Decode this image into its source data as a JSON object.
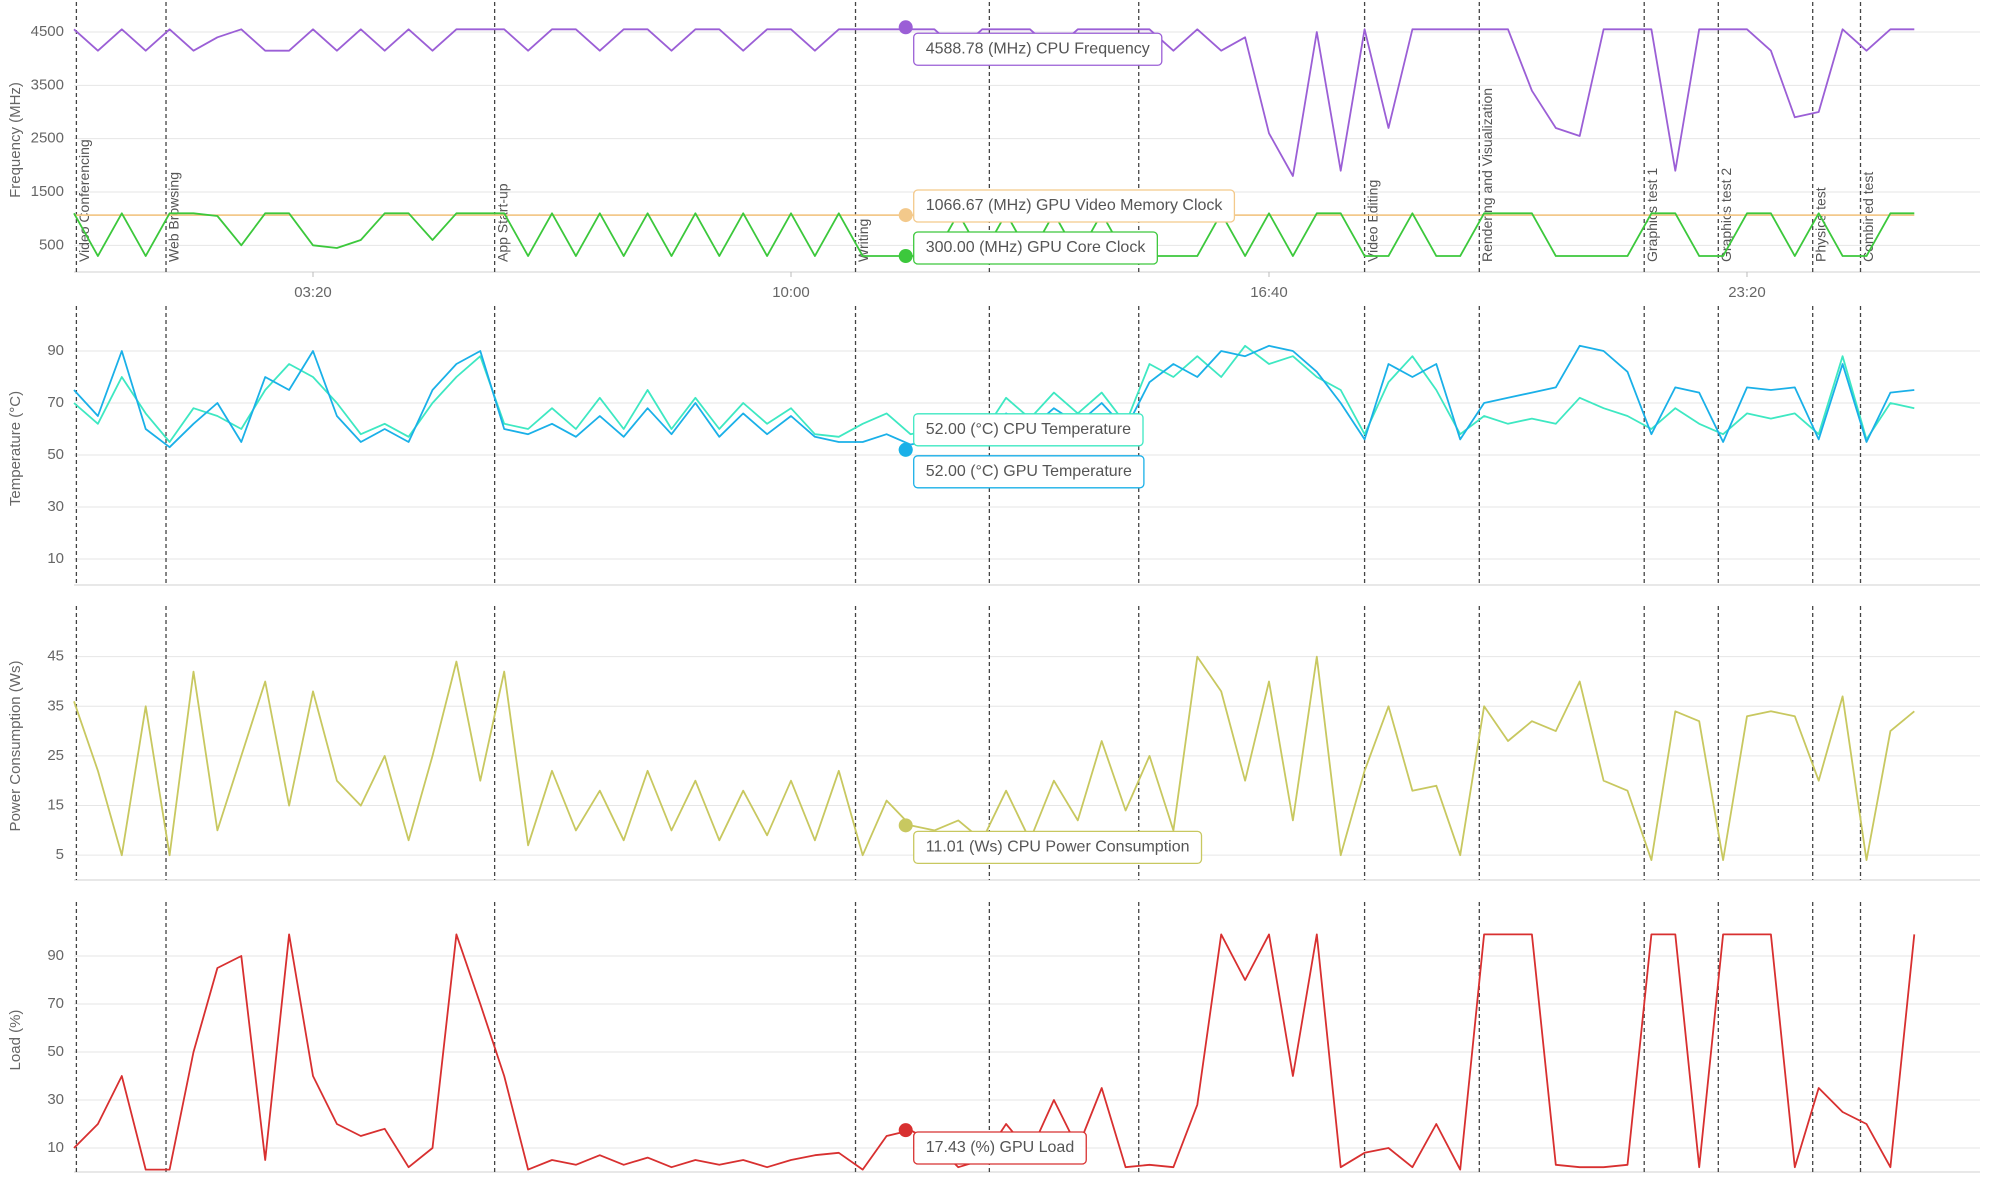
{
  "chart_data": [
    {
      "type": "line",
      "ylabel": "Frequency (MHz)",
      "ylim": [
        0,
        4950
      ],
      "yticks": [
        500,
        1500,
        2500,
        3500,
        4500
      ],
      "xlim": [
        0,
        1595
      ],
      "xticks": [
        {
          "value": 200,
          "label": "03:20"
        },
        {
          "value": 600,
          "label": "10:00"
        },
        {
          "value": 1000,
          "label": "16:40"
        },
        {
          "value": 1400,
          "label": "23:20"
        }
      ],
      "grid": true,
      "events": {
        "x": [
          2,
          77,
          352,
          654,
          766,
          891,
          1080,
          1176,
          1314,
          1376,
          1455,
          1495
        ],
        "labels": [
          "Video Conferencing",
          "Web Browsing",
          "App Start-up",
          "Writing",
          null,
          null,
          "Video Editing",
          "Rendering and Visualization",
          "Graphics test 1",
          "Graphics test 2",
          "Physics test",
          "Combined test"
        ]
      },
      "hover_x": 696,
      "x": [
        0,
        20,
        40,
        60,
        80,
        100,
        120,
        140,
        160,
        180,
        200,
        220,
        240,
        260,
        280,
        300,
        320,
        340,
        360,
        380,
        400,
        420,
        440,
        460,
        480,
        500,
        520,
        540,
        560,
        580,
        600,
        620,
        640,
        660,
        680,
        700,
        720,
        740,
        760,
        780,
        800,
        820,
        840,
        860,
        880,
        900,
        920,
        940,
        960,
        980,
        1000,
        1020,
        1040,
        1060,
        1080,
        1100,
        1120,
        1140,
        1160,
        1180,
        1200,
        1220,
        1240,
        1260,
        1280,
        1300,
        1320,
        1340,
        1360,
        1380,
        1400,
        1420,
        1440,
        1460,
        1480,
        1500,
        1520,
        1540
      ],
      "series": [
        {
          "name": "CPU Frequency",
          "color": "#9b5fd6",
          "tooltip": {
            "value": 4588.78,
            "text": "4588.78 (MHz) CPU Frequency"
          },
          "values": [
            4550,
            4150,
            4550,
            4150,
            4550,
            4150,
            4400,
            4550,
            4150,
            4150,
            4550,
            4150,
            4550,
            4150,
            4550,
            4150,
            4550,
            4550,
            4550,
            4150,
            4550,
            4550,
            4150,
            4550,
            4550,
            4150,
            4550,
            4550,
            4150,
            4550,
            4550,
            4150,
            4550,
            4550,
            4550,
            4550,
            4550,
            4150,
            4550,
            4550,
            4550,
            4150,
            4550,
            4550,
            4550,
            4550,
            4150,
            4550,
            4150,
            4400,
            2600,
            1800,
            4500,
            1900,
            4550,
            2700,
            4550,
            4550,
            4550,
            4550,
            4550,
            3400,
            2700,
            2550,
            4550,
            4550,
            4550,
            1900,
            4550,
            4550,
            4550,
            4150,
            2900,
            3000,
            4550,
            4150,
            4550,
            4550
          ]
        },
        {
          "name": "GPU Video Memory Clock",
          "color": "#f3c98b",
          "tooltip": {
            "value": 1066.67,
            "text": "1066.67 (MHz) GPU Video Memory Clock"
          },
          "x": [
            0,
            1540
          ],
          "values": [
            1066.67,
            1066.67
          ]
        },
        {
          "name": "GPU Core Clock",
          "color": "#3cc83c",
          "tooltip": {
            "value": 300,
            "text": "300.00 (MHz) GPU Core Clock"
          },
          "values": [
            1100,
            300,
            1100,
            300,
            1100,
            1100,
            1050,
            500,
            1100,
            1100,
            500,
            450,
            600,
            1100,
            1100,
            600,
            1100,
            1100,
            1100,
            300,
            1100,
            300,
            1100,
            300,
            1100,
            300,
            1100,
            300,
            1100,
            300,
            1100,
            300,
            1100,
            300,
            300,
            300,
            300,
            1100,
            300,
            1100,
            300,
            1100,
            300,
            1100,
            300,
            300,
            300,
            300,
            1100,
            300,
            1100,
            300,
            1100,
            1100,
            300,
            300,
            1100,
            300,
            300,
            1100,
            1100,
            1100,
            300,
            300,
            300,
            300,
            1100,
            1100,
            300,
            300,
            1100,
            1100,
            300,
            1100,
            300,
            300,
            1100,
            1100
          ]
        }
      ]
    },
    {
      "type": "line",
      "ylabel": "Temperature (°C)",
      "ylim": [
        0,
        105
      ],
      "yticks": [
        10,
        30,
        50,
        70,
        90
      ],
      "xlim": [
        0,
        1595
      ],
      "grid": true,
      "hover_x": 696,
      "x": [
        0,
        20,
        40,
        60,
        80,
        100,
        120,
        140,
        160,
        180,
        200,
        220,
        240,
        260,
        280,
        300,
        320,
        340,
        360,
        380,
        400,
        420,
        440,
        460,
        480,
        500,
        520,
        540,
        560,
        580,
        600,
        620,
        640,
        660,
        680,
        700,
        720,
        740,
        760,
        780,
        800,
        820,
        840,
        860,
        880,
        900,
        920,
        940,
        960,
        980,
        1000,
        1020,
        1040,
        1060,
        1080,
        1100,
        1120,
        1140,
        1160,
        1180,
        1200,
        1220,
        1240,
        1260,
        1280,
        1300,
        1320,
        1340,
        1360,
        1380,
        1400,
        1420,
        1440,
        1460,
        1480,
        1500,
        1520,
        1540
      ],
      "series": [
        {
          "name": "CPU Temperature",
          "color": "#3ee8c2",
          "tooltip": {
            "value": 52,
            "text": "52.00 (°C) CPU Temperature"
          },
          "values": [
            70,
            62,
            80,
            66,
            55,
            68,
            65,
            60,
            75,
            85,
            80,
            70,
            58,
            62,
            57,
            70,
            80,
            88,
            62,
            60,
            68,
            60,
            72,
            60,
            75,
            60,
            72,
            60,
            70,
            62,
            68,
            58,
            57,
            62,
            66,
            58,
            60,
            62,
            58,
            72,
            64,
            74,
            66,
            74,
            62,
            85,
            80,
            88,
            80,
            92,
            85,
            88,
            80,
            75,
            58,
            78,
            88,
            75,
            58,
            65,
            62,
            64,
            62,
            72,
            68,
            65,
            60,
            68,
            62,
            58,
            66,
            64,
            66,
            58,
            88,
            56,
            70,
            68
          ]
        },
        {
          "name": "GPU Temperature",
          "color": "#1ab0e8",
          "tooltip": {
            "value": 52,
            "text": "52.00 (°C) GPU Temperature"
          },
          "values": [
            75,
            65,
            90,
            60,
            53,
            62,
            70,
            55,
            80,
            75,
            90,
            65,
            55,
            60,
            55,
            75,
            85,
            90,
            60,
            58,
            62,
            57,
            65,
            57,
            68,
            58,
            70,
            57,
            66,
            58,
            65,
            57,
            55,
            55,
            58,
            54,
            56,
            60,
            56,
            66,
            60,
            68,
            62,
            70,
            60,
            78,
            85,
            80,
            90,
            88,
            92,
            90,
            82,
            70,
            56,
            85,
            80,
            85,
            56,
            70,
            72,
            74,
            76,
            92,
            90,
            82,
            58,
            76,
            74,
            55,
            76,
            75,
            76,
            56,
            85,
            55,
            74,
            75
          ]
        }
      ]
    },
    {
      "type": "line",
      "ylabel": "Power Consumption (Ws)",
      "ylim": [
        0,
        54
      ],
      "yticks": [
        5,
        15,
        25,
        35,
        45
      ],
      "xlim": [
        0,
        1595
      ],
      "grid": true,
      "hover_x": 696,
      "x": [
        0,
        20,
        40,
        60,
        80,
        100,
        120,
        140,
        160,
        180,
        200,
        220,
        240,
        260,
        280,
        300,
        320,
        340,
        360,
        380,
        400,
        420,
        440,
        460,
        480,
        500,
        520,
        540,
        560,
        580,
        600,
        620,
        640,
        660,
        680,
        700,
        720,
        740,
        760,
        780,
        800,
        820,
        840,
        860,
        880,
        900,
        920,
        940,
        960,
        980,
        1000,
        1020,
        1040,
        1060,
        1080,
        1100,
        1120,
        1140,
        1160,
        1180,
        1200,
        1220,
        1240,
        1260,
        1280,
        1300,
        1320,
        1340,
        1360,
        1380,
        1400,
        1420,
        1440,
        1460,
        1480,
        1500,
        1520,
        1540
      ],
      "series": [
        {
          "name": "CPU Power Consumption",
          "color": "#c8c860",
          "tooltip": {
            "value": 11.01,
            "text": "11.01 (Ws) CPU Power Consumption"
          },
          "values": [
            36,
            22,
            5,
            35,
            5,
            42,
            10,
            25,
            40,
            15,
            38,
            20,
            15,
            25,
            8,
            25,
            44,
            20,
            42,
            7,
            22,
            10,
            18,
            8,
            22,
            10,
            20,
            8,
            18,
            9,
            20,
            8,
            22,
            5,
            16,
            11,
            10,
            12,
            8,
            18,
            8,
            20,
            12,
            28,
            14,
            25,
            10,
            45,
            38,
            20,
            40,
            12,
            45,
            5,
            22,
            35,
            18,
            19,
            5,
            35,
            28,
            32,
            30,
            40,
            20,
            18,
            4,
            34,
            32,
            4,
            33,
            34,
            33,
            20,
            37,
            4,
            30,
            34
          ]
        }
      ]
    },
    {
      "type": "line",
      "ylabel": "Load (%)",
      "ylim": [
        0,
        110
      ],
      "yticks": [
        10,
        30,
        50,
        70,
        90
      ],
      "xlim": [
        0,
        1595
      ],
      "grid": true,
      "hover_x": 696,
      "x": [
        0,
        20,
        40,
        60,
        80,
        100,
        120,
        140,
        160,
        180,
        200,
        220,
        240,
        260,
        280,
        300,
        320,
        340,
        360,
        380,
        400,
        420,
        440,
        460,
        480,
        500,
        520,
        540,
        560,
        580,
        600,
        620,
        640,
        660,
        680,
        700,
        720,
        740,
        760,
        780,
        800,
        820,
        840,
        860,
        880,
        900,
        920,
        940,
        960,
        980,
        1000,
        1020,
        1040,
        1060,
        1080,
        1100,
        1120,
        1140,
        1160,
        1180,
        1200,
        1220,
        1240,
        1260,
        1280,
        1300,
        1320,
        1340,
        1360,
        1380,
        1400,
        1420,
        1440,
        1460,
        1480,
        1500,
        1520,
        1540
      ],
      "series": [
        {
          "name": "GPU Load",
          "color": "#d83030",
          "tooltip": {
            "value": 17.43,
            "text": "17.43 (%) GPU Load"
          },
          "values": [
            10,
            20,
            40,
            1,
            1,
            50,
            85,
            90,
            5,
            99,
            40,
            20,
            15,
            18,
            2,
            10,
            99,
            70,
            40,
            1,
            5,
            3,
            7,
            3,
            6,
            2,
            5,
            3,
            5,
            2,
            5,
            7,
            8,
            1,
            15,
            17.43,
            12,
            2,
            5,
            20,
            8,
            30,
            10,
            35,
            2,
            3,
            2,
            28,
            99,
            80,
            99,
            40,
            99,
            2,
            8,
            10,
            2,
            20,
            1,
            99,
            99,
            99,
            3,
            2,
            2,
            3,
            99,
            99,
            2,
            99,
            99,
            99,
            2,
            35,
            25,
            20,
            2,
            99
          ]
        }
      ]
    }
  ]
}
